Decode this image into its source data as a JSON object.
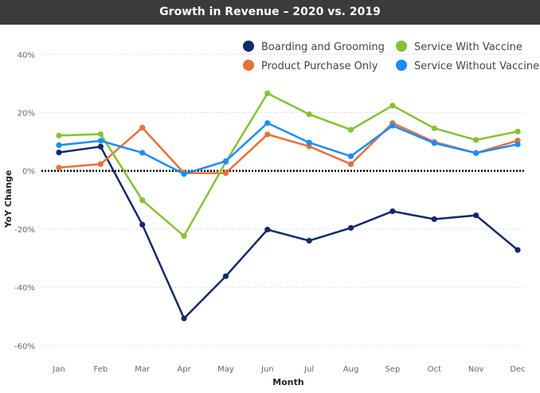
{
  "chart_data": {
    "type": "line",
    "title": "Growth in Revenue – 2020 vs. 2019",
    "xlabel": "Month",
    "ylabel": "YoY Change",
    "ylim": [
      -60,
      40
    ],
    "yticks": [
      40,
      20,
      0,
      -20,
      -40,
      -60
    ],
    "ytick_labels": [
      "40%",
      "20%",
      "0%",
      "-20%",
      "-40%",
      "-60%"
    ],
    "grid": true,
    "legend_position": "top-right",
    "categories": [
      "Jan",
      "Feb",
      "Mar",
      "Apr",
      "May",
      "Jun",
      "Jul",
      "Aug",
      "Sep",
      "Oct",
      "Nov",
      "Dec"
    ],
    "series": [
      {
        "name": "Boarding and Grooming",
        "color": "#13296b",
        "values": [
          6.3,
          8.3,
          -18.5,
          -50.7,
          -36.2,
          -20.2,
          -24.0,
          -19.6,
          -13.9,
          -16.6,
          -15.3,
          -27.2
        ]
      },
      {
        "name": "Product Purchase Only",
        "color": "#e8703a",
        "values": [
          1.1,
          2.3,
          14.8,
          -0.8,
          -0.8,
          12.5,
          8.4,
          2.3,
          16.4,
          9.9,
          6.1,
          10.4
        ]
      },
      {
        "name": "Service With Vaccine",
        "color": "#86c232",
        "values": [
          12.1,
          12.6,
          -10.1,
          -22.4,
          3.0,
          26.6,
          19.4,
          14.1,
          22.4,
          14.6,
          10.6,
          13.5
        ]
      },
      {
        "name": "Service Without Vaccine",
        "color": "#1a8cff",
        "values": [
          8.8,
          10.3,
          6.2,
          -1.1,
          3.3,
          16.4,
          9.7,
          5.0,
          15.5,
          9.5,
          6.1,
          9.1
        ]
      }
    ]
  }
}
